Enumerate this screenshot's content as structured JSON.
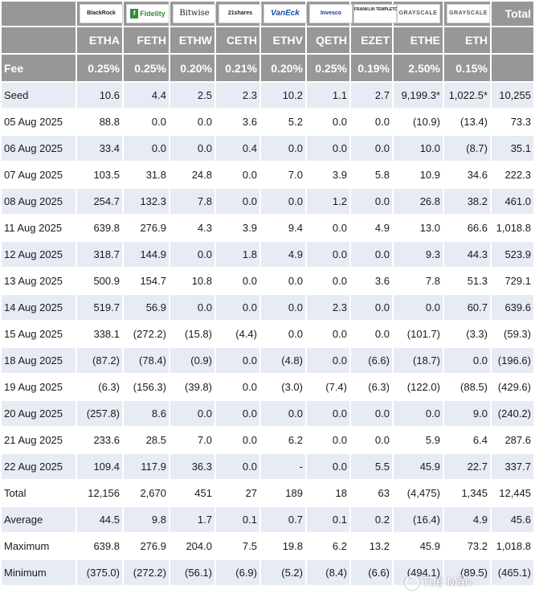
{
  "header": {
    "issuer_logos": [
      {
        "name": "blackrock-logo-icon",
        "text": "BlackRock"
      },
      {
        "name": "fidelity-logo-icon",
        "text": "Fidelity"
      },
      {
        "name": "bitwise-logo-icon",
        "text": "Bitwise"
      },
      {
        "name": "21shares-logo-icon",
        "text": "21shares"
      },
      {
        "name": "vaneck-logo-icon",
        "text": "VanEck"
      },
      {
        "name": "invesco-logo-icon",
        "text": "Invesco"
      },
      {
        "name": "franklin-templeton-logo-icon",
        "text": "FRANKLIN TEMPLETON"
      },
      {
        "name": "grayscale-logo-icon",
        "text": "GRAYSCALE"
      },
      {
        "name": "grayscale-mini-logo-icon",
        "text": "GRAYSCALE"
      }
    ],
    "total_label": "Total",
    "tickers": [
      "ETHA",
      "FETH",
      "ETHW",
      "CETH",
      "ETHV",
      "QETH",
      "EZET",
      "ETHE",
      "ETH"
    ],
    "fee_label": "Fee",
    "fees": [
      "0.25%",
      "0.25%",
      "0.20%",
      "0.21%",
      "0.20%",
      "0.25%",
      "0.19%",
      "2.50%",
      "0.15%"
    ]
  },
  "rows": [
    {
      "label": "Seed",
      "values": [
        "10.6",
        "4.4",
        "2.5",
        "2.3",
        "10.2",
        "1.1",
        "2.7",
        "9,199.3*",
        "1,022.5*",
        "10,255"
      ]
    },
    {
      "label": "05 Aug 2025",
      "values": [
        "88.8",
        "0.0",
        "0.0",
        "3.6",
        "5.2",
        "0.0",
        "0.0",
        "(10.9)",
        "(13.4)",
        "73.3"
      ]
    },
    {
      "label": "06 Aug 2025",
      "values": [
        "33.4",
        "0.0",
        "0.0",
        "0.4",
        "0.0",
        "0.0",
        "0.0",
        "10.0",
        "(8.7)",
        "35.1"
      ]
    },
    {
      "label": "07 Aug 2025",
      "values": [
        "103.5",
        "31.8",
        "24.8",
        "0.0",
        "7.0",
        "3.9",
        "5.8",
        "10.9",
        "34.6",
        "222.3"
      ]
    },
    {
      "label": "08 Aug 2025",
      "values": [
        "254.7",
        "132.3",
        "7.8",
        "0.0",
        "0.0",
        "1.2",
        "0.0",
        "26.8",
        "38.2",
        "461.0"
      ]
    },
    {
      "label": "11 Aug 2025",
      "values": [
        "639.8",
        "276.9",
        "4.3",
        "3.9",
        "9.4",
        "0.0",
        "4.9",
        "13.0",
        "66.6",
        "1,018.8"
      ]
    },
    {
      "label": "12 Aug 2025",
      "values": [
        "318.7",
        "144.9",
        "0.0",
        "1.8",
        "4.9",
        "0.0",
        "0.0",
        "9.3",
        "44.3",
        "523.9"
      ]
    },
    {
      "label": "13 Aug 2025",
      "values": [
        "500.9",
        "154.7",
        "10.8",
        "0.0",
        "0.0",
        "0.0",
        "3.6",
        "7.8",
        "51.3",
        "729.1"
      ]
    },
    {
      "label": "14 Aug 2025",
      "values": [
        "519.7",
        "56.9",
        "0.0",
        "0.0",
        "0.0",
        "2.3",
        "0.0",
        "0.0",
        "60.7",
        "639.6"
      ]
    },
    {
      "label": "15 Aug 2025",
      "values": [
        "338.1",
        "(272.2)",
        "(15.8)",
        "(4.4)",
        "0.0",
        "0.0",
        "0.0",
        "(101.7)",
        "(3.3)",
        "(59.3)"
      ]
    },
    {
      "label": "18 Aug 2025",
      "values": [
        "(87.2)",
        "(78.4)",
        "(0.9)",
        "0.0",
        "(4.8)",
        "0.0",
        "(6.6)",
        "(18.7)",
        "0.0",
        "(196.6)"
      ]
    },
    {
      "label": "19 Aug 2025",
      "values": [
        "(6.3)",
        "(156.3)",
        "(39.8)",
        "0.0",
        "(3.0)",
        "(7.4)",
        "(6.3)",
        "(122.0)",
        "(88.5)",
        "(429.6)"
      ]
    },
    {
      "label": "20 Aug 2025",
      "values": [
        "(257.8)",
        "8.6",
        "0.0",
        "0.0",
        "0.0",
        "0.0",
        "0.0",
        "0.0",
        "9.0",
        "(240.2)"
      ]
    },
    {
      "label": "21 Aug 2025",
      "values": [
        "233.6",
        "28.5",
        "7.0",
        "0.0",
        "6.2",
        "0.0",
        "0.0",
        "5.9",
        "6.4",
        "287.6"
      ]
    },
    {
      "label": "22 Aug 2025",
      "values": [
        "109.4",
        "117.9",
        "36.3",
        "0.0",
        "-",
        "0.0",
        "5.5",
        "45.9",
        "22.7",
        "337.7"
      ]
    },
    {
      "label": "Total",
      "values": [
        "12,156",
        "2,670",
        "451",
        "27",
        "189",
        "18",
        "63",
        "(4,475)",
        "1,345",
        "12,445"
      ]
    },
    {
      "label": "Average",
      "values": [
        "44.5",
        "9.8",
        "1.7",
        "0.1",
        "0.7",
        "0.1",
        "0.2",
        "(16.4)",
        "4.9",
        "45.6"
      ]
    },
    {
      "label": "Maximum",
      "values": [
        "639.8",
        "276.9",
        "204.0",
        "7.5",
        "19.8",
        "6.2",
        "13.2",
        "45.9",
        "73.2",
        "1,018.8"
      ]
    },
    {
      "label": "Minimum",
      "values": [
        "(375.0)",
        "(272.2)",
        "(56.1)",
        "(6.9)",
        "(5.2)",
        "(8.4)",
        "(6.6)",
        "(494.1)",
        "(89.5)",
        "(465.1)"
      ]
    }
  ],
  "watermark": "Tuệ Mẫn",
  "colors": {
    "header_bg": "#979797",
    "odd_row_bg": "#e6ebf4",
    "negative": "#e0182a"
  }
}
